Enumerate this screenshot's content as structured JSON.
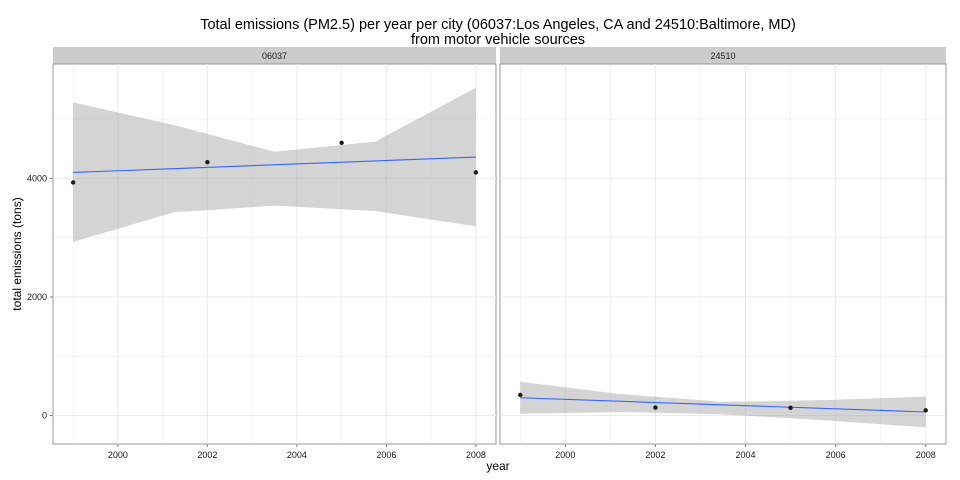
{
  "chart_data": {
    "type": "scatter",
    "title_line1": "Total emissions (PM2.5) per year per city (06037:Los Angeles, CA and 24510:Baltimore, MD)",
    "title_line2": "from motor vehicle sources",
    "xlabel": "year",
    "ylabel": "total emissions (tons)",
    "xlim": [
      1998.55,
      2008.45
    ],
    "ylim": [
      -480,
      5930
    ],
    "xticks": [
      2000,
      2002,
      2004,
      2006,
      2008
    ],
    "yticks": [
      0,
      2000,
      4000
    ],
    "grid": true,
    "smoother": "linear fit with confidence band",
    "colors": {
      "point": "#1a1a1a",
      "fit_line": "#3366ff",
      "band": "#999999",
      "strip": "#cccccc",
      "panel_border": "#999999",
      "grid": "#ebebeb"
    },
    "panels": [
      {
        "strip": "06037",
        "x": [
          1999,
          2002,
          2005,
          2008
        ],
        "y": [
          3931,
          4274,
          4601,
          4101
        ],
        "fit_line": [
          4100,
          4360
        ],
        "band_upper": [
          5280,
          4900,
          4450,
          4620,
          5530
        ],
        "band_lower": [
          2930,
          3430,
          3540,
          3450,
          3190
        ]
      },
      {
        "strip": "24510",
        "x": [
          1999,
          2002,
          2005,
          2008
        ],
        "y": [
          347,
          134,
          130,
          88
        ],
        "fit_line": [
          300,
          60
        ],
        "band_upper": [
          570,
          360,
          230,
          260,
          320
        ],
        "band_lower": [
          30,
          60,
          20,
          -80,
          -200
        ]
      }
    ]
  }
}
